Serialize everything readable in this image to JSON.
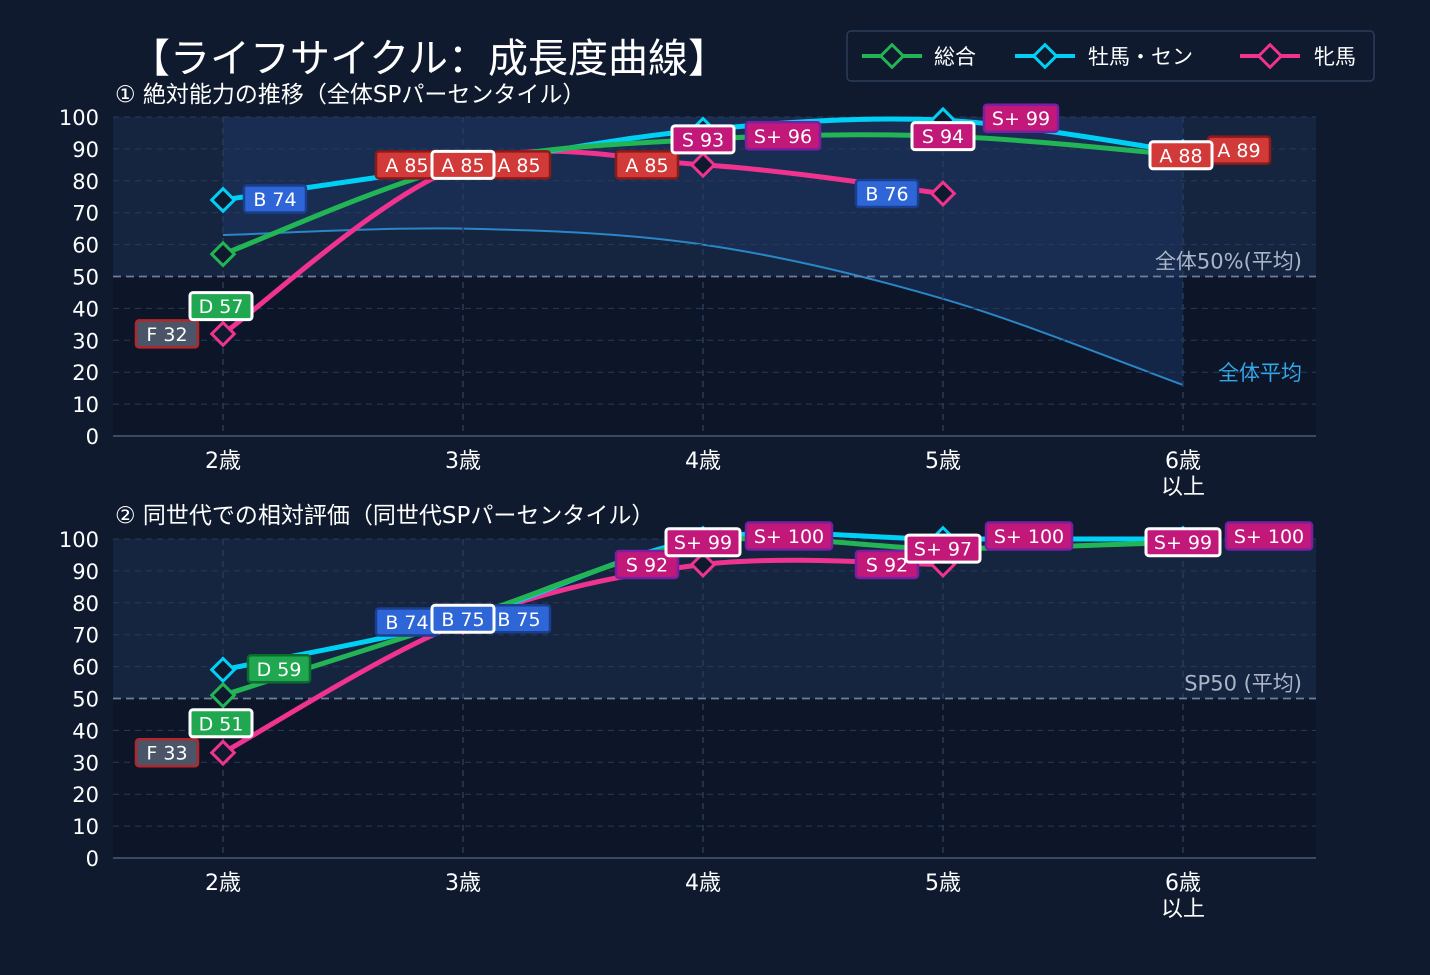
{
  "title": "【ライフサイクル：成長度曲線】",
  "legend": [
    {
      "label": "総合",
      "color": "#22b455"
    },
    {
      "label": "牡馬・セン",
      "color": "#00d0f5"
    },
    {
      "label": "牝馬",
      "color": "#f0338f"
    }
  ],
  "chart_data": [
    {
      "type": "line",
      "title": "① 絶対能力の推移（全体SPパーセンタイル）",
      "categories": [
        "2歳",
        "3歳",
        "4歳",
        "5歳",
        "6歳\n以上"
      ],
      "ylim": [
        0,
        100
      ],
      "yticks": [
        0,
        10,
        20,
        30,
        40,
        50,
        60,
        70,
        80,
        90,
        100
      ],
      "grid": true,
      "legend_position": "top-right",
      "reference_line": {
        "value": 50,
        "label": "全体50%(平均)"
      },
      "average_curve": {
        "label": "全体平均",
        "values": [
          63,
          65,
          60,
          43,
          16
        ]
      },
      "series": [
        {
          "name": "総合",
          "color": "#22b455",
          "values": [
            57,
            85,
            93,
            94,
            88
          ],
          "labels": [
            "D 57",
            "A 85",
            "S 93",
            "S 94",
            "A 88"
          ]
        },
        {
          "name": "牡馬・セン",
          "color": "#00d0f5",
          "values": [
            74,
            85,
            96,
            99,
            89
          ],
          "labels": [
            "B 74",
            "A 85",
            "S+ 96",
            "S+ 99",
            "A 89"
          ]
        },
        {
          "name": "牝馬",
          "color": "#f0338f",
          "values": [
            32,
            85,
            85,
            76,
            null
          ],
          "labels": [
            "F 32",
            "A 85",
            "A 85",
            "B 76",
            null
          ]
        }
      ]
    },
    {
      "type": "line",
      "title": "② 同世代での相対評価（同世代SPパーセンタイル）",
      "categories": [
        "2歳",
        "3歳",
        "4歳",
        "5歳",
        "6歳\n以上"
      ],
      "ylim": [
        0,
        100
      ],
      "yticks": [
        0,
        10,
        20,
        30,
        40,
        50,
        60,
        70,
        80,
        90,
        100
      ],
      "grid": true,
      "reference_line": {
        "value": 50,
        "label": "SP50 (平均)"
      },
      "series": [
        {
          "name": "総合",
          "color": "#22b455",
          "values": [
            51,
            75,
            99,
            97,
            99
          ],
          "labels": [
            "D 51",
            "B 75",
            "S+ 99",
            "S+ 97",
            "S+ 99"
          ]
        },
        {
          "name": "牡馬・セン",
          "color": "#00d0f5",
          "values": [
            59,
            75,
            100,
            100,
            100
          ],
          "labels": [
            "D 59",
            "B 75",
            "S+ 100",
            "S+ 100",
            "S+ 100"
          ]
        },
        {
          "name": "牝馬",
          "color": "#f0338f",
          "values": [
            33,
            74,
            92,
            92,
            null
          ],
          "labels": [
            "F 33",
            "B 74",
            "S 92",
            "S 92",
            null
          ]
        }
      ]
    }
  ]
}
